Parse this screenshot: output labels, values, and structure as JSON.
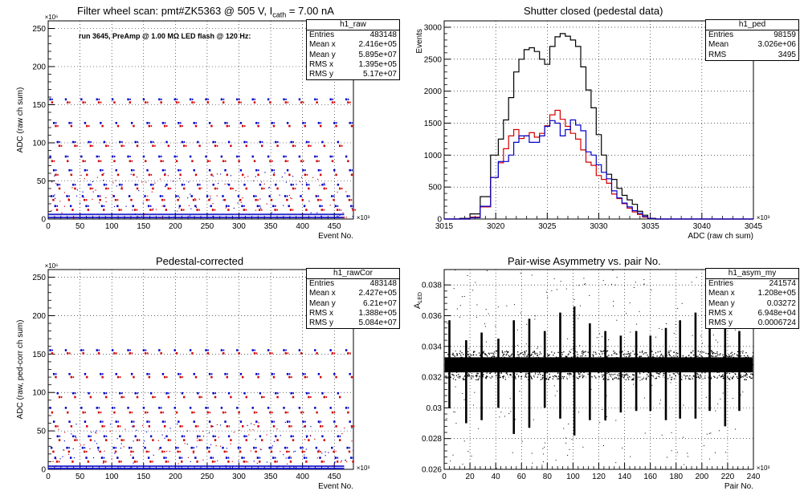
{
  "colors": {
    "black": "#000000",
    "red": "#d40000",
    "blue": "#0000c8",
    "grid": "#000000"
  },
  "panels": [
    {
      "title_parts": {
        "prefix": "Filter wheel scan: pmt#ZK5363 @   505 V, I",
        "sub": "cath",
        "suffix": " = 7.00 nA"
      },
      "annotation": "run 3645, PreAmp @ 1.00 MΩ LED flash @  120 Hz:",
      "stats": {
        "name": "h1_raw",
        "rows": [
          [
            "Entries",
            "483148"
          ],
          [
            "Mean x",
            "2.416e+05"
          ],
          [
            "Mean y",
            "5.895e+07"
          ],
          [
            "RMS x",
            "1.395e+05"
          ],
          [
            "RMS y",
            "5.17e+07"
          ]
        ]
      }
    },
    {
      "title": "Shutter closed (pedestal data)",
      "stats": {
        "name": "h1_ped",
        "rows": [
          [
            "Entries",
            "98159"
          ],
          [
            "Mean",
            "3.026e+06"
          ],
          [
            "RMS",
            "3495"
          ]
        ]
      }
    },
    {
      "title": "Pedestal-corrected",
      "stats": {
        "name": "h1_rawCor",
        "rows": [
          [
            "Entries",
            "483148"
          ],
          [
            "Mean x",
            "2.427e+05"
          ],
          [
            "Mean y",
            "6.21e+07"
          ],
          [
            "RMS x",
            "1.388e+05"
          ],
          [
            "RMS y",
            "5.084e+07"
          ]
        ]
      }
    },
    {
      "title": "Pair-wise Asymmetry vs. pair No.",
      "stats": {
        "name": "h1_asym_my",
        "rows": [
          [
            "Entries",
            "241574"
          ],
          [
            "Mean x",
            "1.208e+05"
          ],
          [
            "Mean y",
            "0.03272"
          ],
          [
            "RMS x",
            "6.948e+04"
          ],
          [
            "RMS y",
            "0.0006724"
          ]
        ]
      }
    }
  ],
  "chart_data": [
    {
      "type": "scatter",
      "title": "Filter wheel scan: pmt#ZK5363 @   505 V, I_cath = 7.00 nA",
      "xlabel": "Event No.",
      "ylabel": "ADC (raw ch sum)",
      "x_exponent": "×10³",
      "y_exponent": "×10⁶",
      "xlim": [
        0,
        480
      ],
      "ylim": [
        0,
        260
      ],
      "xticks": [
        0,
        50,
        100,
        150,
        200,
        250,
        300,
        350,
        400,
        450
      ],
      "yticks": [
        0,
        50,
        100,
        150,
        200,
        250
      ],
      "grid": true,
      "cycle_period": 24.5,
      "levels": [
        {
          "y": 157,
          "color": "blue"
        },
        {
          "y": 153,
          "color": "red"
        },
        {
          "y": 126,
          "color": "blue"
        },
        {
          "y": 122,
          "color": "red"
        },
        {
          "y": 101,
          "color": "blue"
        },
        {
          "y": 96,
          "color": "red"
        },
        {
          "y": 82,
          "color": "blue"
        },
        {
          "y": 76,
          "color": "red"
        },
        {
          "y": 64,
          "color": "blue"
        },
        {
          "y": 58,
          "color": "red"
        },
        {
          "y": 45,
          "color": "blue"
        },
        {
          "y": 40,
          "color": "red"
        },
        {
          "y": 30,
          "color": "blue"
        },
        {
          "y": 25,
          "color": "red"
        },
        {
          "y": 17,
          "color": "blue"
        },
        {
          "y": 12,
          "color": "red"
        },
        {
          "y": 6,
          "color": "blue"
        },
        {
          "y": 2,
          "color": "blue"
        }
      ]
    },
    {
      "type": "line",
      "title": "Shutter closed (pedestal data)",
      "xlabel": "ADC (raw ch sum)",
      "ylabel": "Events",
      "x_exponent": "×10³",
      "xlim": [
        3015,
        3045
      ],
      "ylim": [
        0,
        3100
      ],
      "xticks": [
        3015,
        3020,
        3025,
        3030,
        3035,
        3040,
        3045
      ],
      "yticks": [
        0,
        500,
        1000,
        1500,
        2000,
        2500,
        3000
      ],
      "grid": true,
      "x": [
        3016,
        3017,
        3018,
        3019,
        3020,
        3020.5,
        3021,
        3021.5,
        3022,
        3022.5,
        3023,
        3023.5,
        3024,
        3024.5,
        3025,
        3025.5,
        3026,
        3026.5,
        3027,
        3027.5,
        3028,
        3028.5,
        3029,
        3029.5,
        3030,
        3030.5,
        3031,
        3031.5,
        3032,
        3032.5,
        3033,
        3033.5,
        3034,
        3034.5,
        3035,
        3036,
        3040,
        3045
      ],
      "series": [
        {
          "color": "black",
          "values": [
            0,
            10,
            80,
            350,
            1000,
            1250,
            1550,
            1900,
            2300,
            2500,
            2650,
            2680,
            2620,
            2500,
            2420,
            2700,
            2850,
            2900,
            2860,
            2800,
            2700,
            2380,
            2020,
            1740,
            1320,
            1000,
            700,
            620,
            480,
            370,
            300,
            230,
            120,
            60,
            10,
            0,
            0,
            0
          ]
        },
        {
          "color": "red",
          "values": [
            0,
            0,
            30,
            190,
            650,
            880,
            1100,
            1300,
            1400,
            1260,
            1300,
            1350,
            1280,
            1340,
            1460,
            1630,
            1700,
            1560,
            1450,
            1340,
            1250,
            1080,
            890,
            840,
            680,
            620,
            560,
            390,
            320,
            240,
            170,
            110,
            70,
            30,
            10,
            0,
            0,
            0
          ]
        },
        {
          "color": "blue",
          "values": [
            0,
            0,
            20,
            200,
            650,
            900,
            900,
            1000,
            1200,
            1300,
            1300,
            1200,
            1200,
            1300,
            1450,
            1540,
            1500,
            1300,
            1400,
            1550,
            1470,
            1380,
            1050,
            1000,
            850,
            730,
            630,
            440,
            330,
            250,
            190,
            130,
            90,
            40,
            10,
            0,
            0,
            0
          ]
        }
      ]
    },
    {
      "type": "scatter",
      "title": "Pedestal-corrected",
      "xlabel": "Event No.",
      "ylabel": "ADC (raw, ped-corr ch sum)",
      "x_exponent": "×10³",
      "y_exponent": "×10⁶",
      "xlim": [
        0,
        480
      ],
      "ylim": [
        0,
        260
      ],
      "xticks": [
        0,
        50,
        100,
        150,
        200,
        250,
        300,
        350,
        400,
        450
      ],
      "yticks": [
        0,
        50,
        100,
        150,
        200,
        250
      ],
      "grid": true,
      "cycle_period": 24.5,
      "levels": [
        {
          "y": 155,
          "color": "blue"
        },
        {
          "y": 151,
          "color": "red"
        },
        {
          "y": 124,
          "color": "blue"
        },
        {
          "y": 120,
          "color": "red"
        },
        {
          "y": 99,
          "color": "blue"
        },
        {
          "y": 94,
          "color": "red"
        },
        {
          "y": 80,
          "color": "blue"
        },
        {
          "y": 74,
          "color": "red"
        },
        {
          "y": 62,
          "color": "blue"
        },
        {
          "y": 56,
          "color": "red"
        },
        {
          "y": 43,
          "color": "blue"
        },
        {
          "y": 38,
          "color": "red"
        },
        {
          "y": 28,
          "color": "blue"
        },
        {
          "y": 23,
          "color": "red"
        },
        {
          "y": 15,
          "color": "blue"
        },
        {
          "y": 10,
          "color": "red"
        },
        {
          "y": 4,
          "color": "blue"
        },
        {
          "y": 1,
          "color": "blue"
        }
      ]
    },
    {
      "type": "scatter",
      "title": "Pair-wise Asymmetry vs. pair No.",
      "xlabel": "Pair No.",
      "ylabel": "A_LED",
      "x_exponent": "×10³",
      "xlim": [
        0,
        240
      ],
      "ylim": [
        0.026,
        0.039
      ],
      "xticks": [
        0,
        20,
        40,
        60,
        80,
        100,
        120,
        140,
        160,
        180,
        200,
        220,
        240
      ],
      "yticks": [
        0.026,
        0.028,
        0.03,
        0.032,
        0.034,
        0.036,
        0.038
      ],
      "grid": true,
      "band_center": 0.0328,
      "band_halfwidth": 0.0007,
      "spikes": [
        {
          "x": 4,
          "top": 0.0357,
          "bottom": 0.03
        },
        {
          "x": 17,
          "top": 0.0344,
          "bottom": 0.029
        },
        {
          "x": 29,
          "top": 0.0349,
          "bottom": 0.0292
        },
        {
          "x": 42,
          "top": 0.0345,
          "bottom": 0.03
        },
        {
          "x": 54,
          "top": 0.0357,
          "bottom": 0.0283
        },
        {
          "x": 66,
          "top": 0.0358,
          "bottom": 0.0287
        },
        {
          "x": 78,
          "top": 0.035,
          "bottom": 0.03
        },
        {
          "x": 90,
          "top": 0.0362,
          "bottom": 0.0293
        },
        {
          "x": 101,
          "top": 0.0366,
          "bottom": 0.0282
        },
        {
          "x": 113,
          "top": 0.0355,
          "bottom": 0.0292
        },
        {
          "x": 125,
          "top": 0.035,
          "bottom": 0.0292
        },
        {
          "x": 137,
          "top": 0.0347,
          "bottom": 0.0297
        },
        {
          "x": 149,
          "top": 0.035,
          "bottom": 0.0298
        },
        {
          "x": 160,
          "top": 0.0347,
          "bottom": 0.0298
        },
        {
          "x": 172,
          "top": 0.0352,
          "bottom": 0.0292
        },
        {
          "x": 183,
          "top": 0.0357,
          "bottom": 0.0293
        },
        {
          "x": 195,
          "top": 0.0362,
          "bottom": 0.0293
        },
        {
          "x": 206,
          "top": 0.0357,
          "bottom": 0.0298
        },
        {
          "x": 218,
          "top": 0.0355,
          "bottom": 0.0288
        },
        {
          "x": 229,
          "top": 0.035,
          "bottom": 0.0298
        }
      ]
    }
  ]
}
